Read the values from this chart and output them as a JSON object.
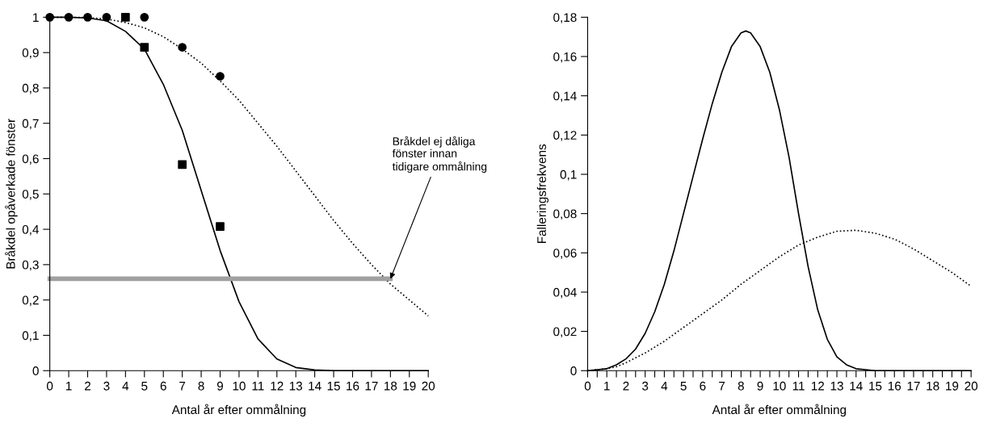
{
  "chart_data": [
    {
      "type": "line",
      "xlabel": "Antal år efter ommålning",
      "ylabel": "Bråkdel opåverkade fönster",
      "xlim": [
        0,
        20
      ],
      "ylim": [
        0,
        1
      ],
      "xticks": [
        0,
        1,
        2,
        3,
        4,
        5,
        6,
        7,
        8,
        9,
        10,
        11,
        12,
        13,
        14,
        15,
        16,
        17,
        18,
        19,
        20
      ],
      "yticks": [
        0,
        {
          "value": 0.1,
          "label": "0,1"
        },
        {
          "value": 0.2,
          "label": "0,2"
        },
        {
          "value": 0.3,
          "label": "0,3"
        },
        {
          "value": 0.4,
          "label": "0,4"
        },
        {
          "value": 0.5,
          "label": "0,5"
        },
        {
          "value": 0.6,
          "label": "0,6"
        },
        {
          "value": 0.7,
          "label": "0,7"
        },
        {
          "value": 0.8,
          "label": "0,8"
        },
        {
          "value": 0.9,
          "label": "0,9"
        },
        1
      ],
      "grid": false,
      "legend": false,
      "series": [
        {
          "type": "line",
          "color": "#000000",
          "line_style": "solid",
          "marker": "none",
          "x": [
            0,
            1,
            2,
            3,
            4,
            5,
            6,
            7,
            8,
            9,
            10,
            11,
            12,
            13,
            14,
            15,
            16,
            17,
            18,
            19,
            20
          ],
          "values": [
            1,
            1,
            0.998,
            0.99,
            0.96,
            0.91,
            0.81,
            0.68,
            0.51,
            0.34,
            0.195,
            0.09,
            0.033,
            0.009,
            0.002,
            0,
            0,
            0,
            0,
            0,
            0
          ]
        },
        {
          "type": "line",
          "color": "#000000",
          "line_style": "dotted",
          "marker": "none",
          "x": [
            0,
            1,
            2,
            3,
            4,
            5,
            6,
            7,
            8,
            9,
            10,
            11,
            12,
            13,
            14,
            15,
            16,
            17,
            18,
            19,
            20
          ],
          "values": [
            1,
            1,
            0.999,
            0.995,
            0.985,
            0.97,
            0.945,
            0.91,
            0.87,
            0.82,
            0.765,
            0.7,
            0.635,
            0.565,
            0.495,
            0.425,
            0.36,
            0.3,
            0.245,
            0.2,
            0.155
          ]
        },
        {
          "type": "line",
          "color": "#a0a0a0",
          "line_style": "solid",
          "marker": "none",
          "x": [
            0,
            18
          ],
          "values": [
            0.26,
            0.26
          ]
        },
        {
          "type": "scatter",
          "color": "#000000",
          "marker": "square",
          "x": [
            4,
            5,
            7,
            9
          ],
          "values": [
            1,
            0.915,
            0.583,
            0.408
          ]
        },
        {
          "type": "scatter",
          "color": "#000000",
          "marker": "circle",
          "x": [
            0,
            1,
            2,
            3,
            5,
            7,
            9
          ],
          "values": [
            1,
            1,
            1,
            1,
            1,
            0.915,
            0.833
          ]
        }
      ],
      "annotations": [
        {
          "text": "Bråkdel ej dåliga\nfönster innan\ntidigare ommålning",
          "x": 18,
          "y": 0.26
        }
      ]
    },
    {
      "type": "line",
      "xlabel": "Antal år efter ommålning",
      "ylabel": "Falleringsfrekvens",
      "xlim": [
        0,
        20
      ],
      "ylim": [
        0,
        0.18
      ],
      "xticks": [
        0,
        {
          "value": 0.5,
          "label": null
        },
        1,
        {
          "value": 1.5,
          "label": null
        },
        2,
        {
          "value": 2.5,
          "label": null
        },
        3,
        {
          "value": 3.5,
          "label": null
        },
        4,
        {
          "value": 4.5,
          "label": null
        },
        5,
        {
          "value": 5.5,
          "label": null
        },
        6,
        {
          "value": 6.5,
          "label": null
        },
        7,
        {
          "value": 7.5,
          "label": null
        },
        8,
        {
          "value": 8.5,
          "label": null
        },
        9,
        {
          "value": 9.5,
          "label": null
        },
        10,
        {
          "value": 10.5,
          "label": null
        },
        11,
        {
          "value": 11.5,
          "label": null
        },
        12,
        {
          "value": 12.5,
          "label": null
        },
        13,
        {
          "value": 13.5,
          "label": null
        },
        14,
        {
          "value": 14.5,
          "label": null
        },
        15,
        {
          "value": 15.5,
          "label": null
        },
        16,
        {
          "value": 16.5,
          "label": null
        },
        17,
        {
          "value": 17.5,
          "label": null
        },
        18,
        {
          "value": 18.5,
          "label": null
        },
        19,
        {
          "value": 19.5,
          "label": null
        },
        20
      ],
      "yticks": [
        0,
        {
          "value": 0.02,
          "label": "0,02"
        },
        {
          "value": 0.04,
          "label": "0,04"
        },
        {
          "value": 0.06,
          "label": "0,06"
        },
        {
          "value": 0.08,
          "label": "0,08"
        },
        {
          "value": 0.1,
          "label": "0,1"
        },
        {
          "value": 0.12,
          "label": "0,12"
        },
        {
          "value": 0.14,
          "label": "0,14"
        },
        {
          "value": 0.16,
          "label": "0,16"
        },
        {
          "value": 0.18,
          "label": "0,18"
        }
      ],
      "grid": false,
      "legend": false,
      "series": [
        {
          "type": "line",
          "color": "#000000",
          "line_style": "solid",
          "marker": "none",
          "x": [
            0,
            1,
            1.5,
            2,
            2.5,
            3,
            3.5,
            4,
            4.5,
            5,
            5.5,
            6,
            6.5,
            7,
            7.5,
            8,
            8.25,
            8.5,
            9,
            9.5,
            10,
            10.5,
            11,
            11.5,
            12,
            12.5,
            13,
            13.5,
            14,
            15,
            16,
            17,
            18,
            19,
            20
          ],
          "values": [
            0,
            0.001,
            0.003,
            0.006,
            0.011,
            0.019,
            0.03,
            0.044,
            0.061,
            0.08,
            0.099,
            0.118,
            0.136,
            0.152,
            0.165,
            0.172,
            0.173,
            0.172,
            0.165,
            0.152,
            0.133,
            0.109,
            0.08,
            0.053,
            0.031,
            0.016,
            0.007,
            0.003,
            0.001,
            0,
            0,
            0,
            0,
            0,
            0
          ]
        },
        {
          "type": "line",
          "color": "#000000",
          "line_style": "dotted",
          "marker": "none",
          "x": [
            0,
            1,
            1.5,
            2,
            3,
            4,
            5,
            6,
            7,
            8,
            9,
            10,
            11,
            12,
            13,
            14,
            15,
            16,
            17,
            18,
            19,
            20
          ],
          "values": [
            0,
            0.001,
            0.002,
            0.004,
            0.009,
            0.015,
            0.022,
            0.029,
            0.036,
            0.044,
            0.051,
            0.058,
            0.064,
            0.068,
            0.071,
            0.0715,
            0.07,
            0.067,
            0.062,
            0.056,
            0.05,
            0.043
          ]
        }
      ]
    }
  ]
}
